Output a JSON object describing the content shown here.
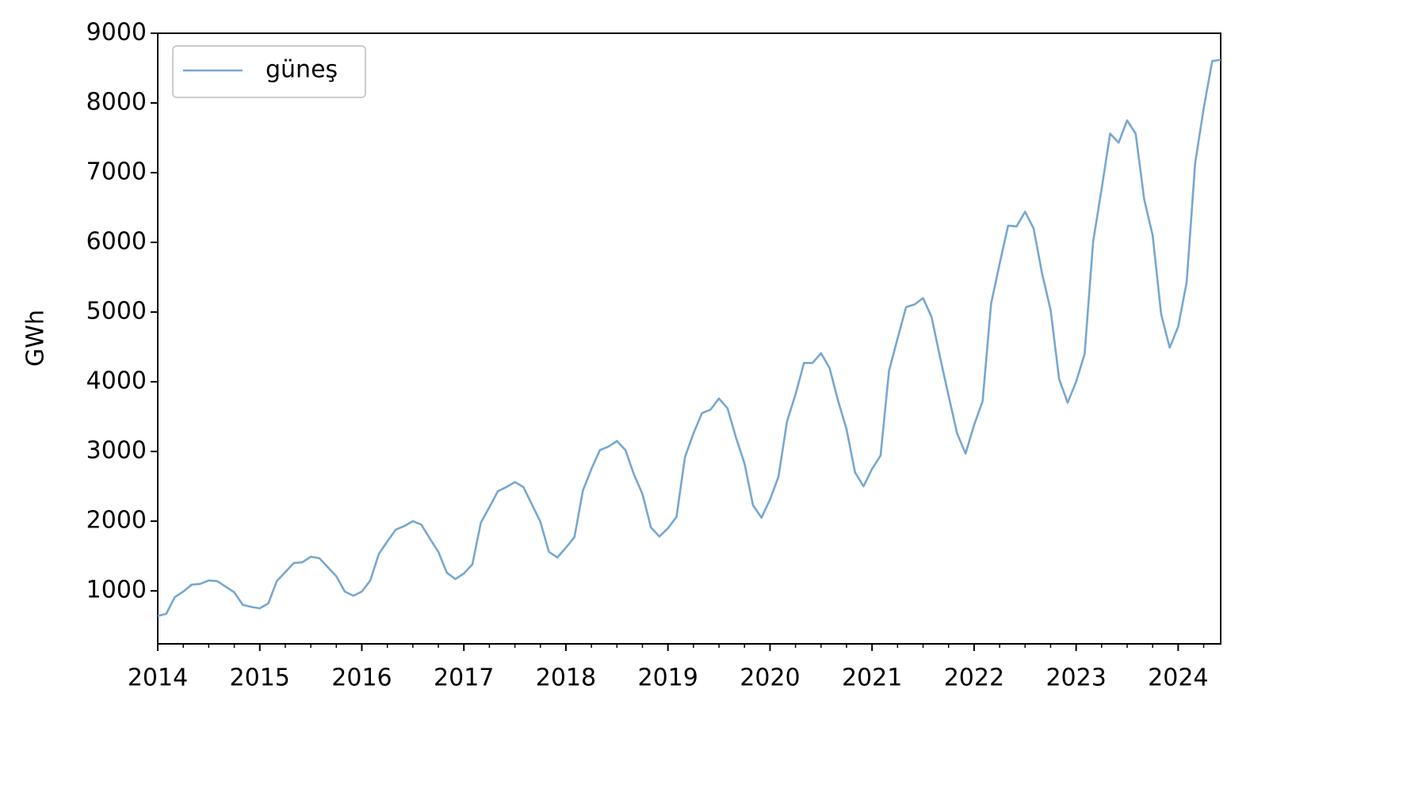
{
  "chart_data": {
    "type": "line",
    "ylabel": "GWh",
    "x": [
      "2014-01",
      "2014-02",
      "2014-03",
      "2014-04",
      "2014-05",
      "2014-06",
      "2014-07",
      "2014-08",
      "2014-09",
      "2014-10",
      "2014-11",
      "2014-12",
      "2015-01",
      "2015-02",
      "2015-03",
      "2015-04",
      "2015-05",
      "2015-06",
      "2015-07",
      "2015-08",
      "2015-09",
      "2015-10",
      "2015-11",
      "2015-12",
      "2016-01",
      "2016-02",
      "2016-03",
      "2016-04",
      "2016-05",
      "2016-06",
      "2016-07",
      "2016-08",
      "2016-09",
      "2016-10",
      "2016-11",
      "2016-12",
      "2017-01",
      "2017-02",
      "2017-03",
      "2017-04",
      "2017-05",
      "2017-06",
      "2017-07",
      "2017-08",
      "2017-09",
      "2017-10",
      "2017-11",
      "2017-12",
      "2018-01",
      "2018-02",
      "2018-03",
      "2018-04",
      "2018-05",
      "2018-06",
      "2018-07",
      "2018-08",
      "2018-09",
      "2018-10",
      "2018-11",
      "2018-12",
      "2019-01",
      "2019-02",
      "2019-03",
      "2019-04",
      "2019-05",
      "2019-06",
      "2019-07",
      "2019-08",
      "2019-09",
      "2019-10",
      "2019-11",
      "2019-12",
      "2020-01",
      "2020-02",
      "2020-03",
      "2020-04",
      "2020-05",
      "2020-06",
      "2020-07",
      "2020-08",
      "2020-09",
      "2020-10",
      "2020-11",
      "2020-12",
      "2021-01",
      "2021-02",
      "2021-03",
      "2021-04",
      "2021-05",
      "2021-06",
      "2021-07",
      "2021-08",
      "2021-09",
      "2021-10",
      "2021-11",
      "2021-12",
      "2022-01",
      "2022-02",
      "2022-03",
      "2022-04",
      "2022-05",
      "2022-06",
      "2022-07",
      "2022-08",
      "2022-09",
      "2022-10",
      "2022-11",
      "2022-12",
      "2023-01",
      "2023-02",
      "2023-03",
      "2023-04",
      "2023-05",
      "2023-06",
      "2023-07",
      "2023-08",
      "2023-09",
      "2023-10",
      "2023-11",
      "2023-12",
      "2024-01",
      "2024-02",
      "2024-03",
      "2024-04",
      "2024-05",
      "2024-06"
    ],
    "series": [
      {
        "name": "güneş",
        "color": "#76a7d1",
        "values": [
          640,
          670,
          910,
          990,
          1090,
          1100,
          1150,
          1140,
          1060,
          980,
          800,
          770,
          750,
          820,
          1140,
          1270,
          1400,
          1410,
          1490,
          1470,
          1340,
          1210,
          990,
          930,
          990,
          1150,
          1530,
          1710,
          1880,
          1930,
          2000,
          1950,
          1750,
          1560,
          1260,
          1170,
          1250,
          1380,
          1980,
          2200,
          2430,
          2490,
          2560,
          2490,
          2240,
          1990,
          1560,
          1480,
          1620,
          1770,
          2440,
          2750,
          3020,
          3070,
          3150,
          3020,
          2670,
          2390,
          1910,
          1780,
          1900,
          2060,
          2920,
          3260,
          3550,
          3600,
          3760,
          3620,
          3200,
          2830,
          2230,
          2050,
          2310,
          2640,
          3430,
          3820,
          4270,
          4270,
          4410,
          4200,
          3730,
          3320,
          2700,
          2500,
          2750,
          2940,
          4160,
          4620,
          5070,
          5110,
          5200,
          4930,
          4350,
          3800,
          3260,
          2970,
          3380,
          3720,
          5120,
          5690,
          6240,
          6230,
          6440,
          6200,
          5550,
          5030,
          4040,
          3700,
          4000,
          4400,
          6010,
          6770,
          7560,
          7430,
          7750,
          7560,
          6620,
          6100,
          4970,
          4490,
          4790,
          5430,
          7140,
          7920,
          8600,
          8620
        ]
      }
    ],
    "xlim": [
      "2014-01",
      "2024-06"
    ],
    "xticks": [
      {
        "value": "2014-01",
        "label": "2014"
      },
      {
        "value": "2015-01",
        "label": "2015"
      },
      {
        "value": "2016-01",
        "label": "2016"
      },
      {
        "value": "2017-01",
        "label": "2017"
      },
      {
        "value": "2018-01",
        "label": "2018"
      },
      {
        "value": "2019-01",
        "label": "2019"
      },
      {
        "value": "2020-01",
        "label": "2020"
      },
      {
        "value": "2021-01",
        "label": "2021"
      },
      {
        "value": "2022-01",
        "label": "2022"
      },
      {
        "value": "2023-01",
        "label": "2023"
      },
      {
        "value": "2024-01",
        "label": "2024"
      }
    ],
    "ylim": [
      240,
      9000
    ],
    "yticks": [
      1000,
      2000,
      3000,
      4000,
      5000,
      6000,
      7000,
      8000,
      9000
    ],
    "legend": "upper left",
    "grid": false
  }
}
